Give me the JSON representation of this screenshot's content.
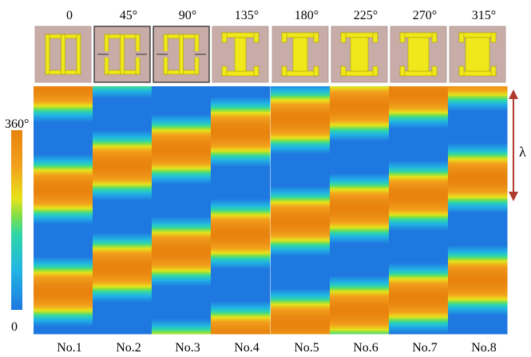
{
  "phase_labels": [
    "0",
    "45°",
    "90°",
    "135°",
    "180°",
    "225°",
    "270°",
    "315°"
  ],
  "element_labels": [
    "No.1",
    "No.2",
    "No.3",
    "No.4",
    "No.5",
    "No.6",
    "No.7",
    "No.8"
  ],
  "unit_cells": [
    {
      "shape": "split-ring",
      "bordered": false
    },
    {
      "shape": "split-ring",
      "bordered": true
    },
    {
      "shape": "split-ring",
      "bordered": true
    },
    {
      "shape": "i-beam",
      "bordered": false
    },
    {
      "shape": "i-beam",
      "bordered": false
    },
    {
      "shape": "i-beam",
      "bordered": false
    },
    {
      "shape": "i-beam",
      "bordered": false
    },
    {
      "shape": "i-beam",
      "bordered": false
    }
  ],
  "colorbar": {
    "max_label": "360°",
    "min_label": "0"
  },
  "wavelength_label": "λ",
  "colors": {
    "cell_bg": "#c8aca8",
    "metal": "#f0e81a",
    "metal_edge": "#a8a000",
    "arrow": "#b03a2e"
  }
}
